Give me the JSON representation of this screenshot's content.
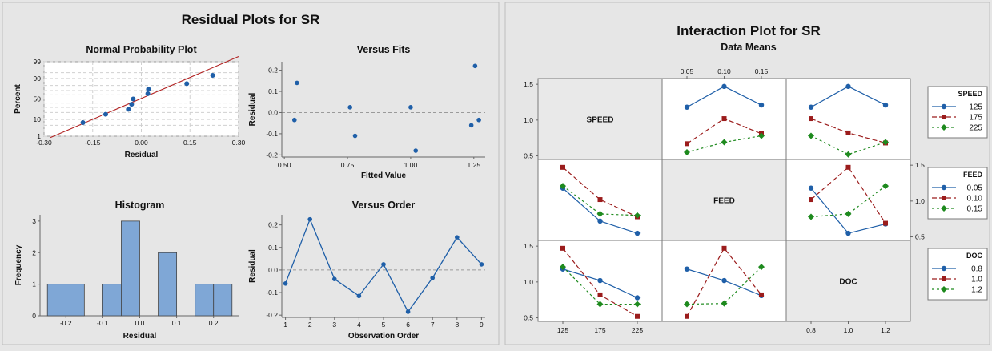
{
  "residual_title": "Residual Plots for SR",
  "interaction_title": "Interaction Plot for SR",
  "interaction_subtitle": "Data Means",
  "colors": {
    "blue": "#1f5fa8",
    "red": "#9b1c1c",
    "green": "#1e8a1e",
    "hist": "#7fa7d6",
    "diagBg": "#e9e9e9"
  },
  "chart_data": [
    {
      "type": "scatter",
      "title": "Normal Probability Plot",
      "xlabel": "Residual",
      "ylabel": "Percent",
      "xticks": [
        "-0.30",
        "-0.15",
        "0.00",
        "0.15",
        "0.30"
      ],
      "yticks": [
        "1",
        "10",
        "50",
        "90",
        "99"
      ],
      "grid": true,
      "points": [
        {
          "x": -0.18,
          "y": 7
        },
        {
          "x": -0.11,
          "y": 17
        },
        {
          "x": -0.04,
          "y": 26
        },
        {
          "x": -0.03,
          "y": 37
        },
        {
          "x": -0.025,
          "y": 50
        },
        {
          "x": 0.02,
          "y": 63
        },
        {
          "x": 0.022,
          "y": 73
        },
        {
          "x": 0.14,
          "y": 83
        },
        {
          "x": 0.22,
          "y": 93
        }
      ],
      "fit_line": [
        {
          "x": -0.28,
          "y": 0.8
        },
        {
          "x": 0.3,
          "y": 99.6
        }
      ]
    },
    {
      "type": "scatter",
      "title": "Versus Fits",
      "xlabel": "Fitted Value",
      "ylabel": "Residual",
      "xticks": [
        "0.50",
        "0.75",
        "1.00",
        "1.25"
      ],
      "yticks": [
        "-0.2",
        "-0.1",
        "0.0",
        "0.1",
        "0.2"
      ],
      "points": [
        {
          "x": 0.54,
          "y": -0.035
        },
        {
          "x": 0.55,
          "y": 0.14
        },
        {
          "x": 0.76,
          "y": 0.025
        },
        {
          "x": 0.78,
          "y": -0.11
        },
        {
          "x": 1.0,
          "y": 0.025
        },
        {
          "x": 1.02,
          "y": -0.18
        },
        {
          "x": 1.24,
          "y": -0.06
        },
        {
          "x": 1.255,
          "y": 0.22
        },
        {
          "x": 1.27,
          "y": -0.035
        }
      ]
    },
    {
      "type": "bar",
      "title": "Histogram",
      "xlabel": "Residual",
      "ylabel": "Frequency",
      "xticks": [
        "-0.2",
        "-0.1",
        "0.0",
        "0.1",
        "0.2"
      ],
      "yticks": [
        "0",
        "1",
        "2",
        "3"
      ],
      "bins": [
        {
          "x0": -0.25,
          "x1": -0.15,
          "count": 1
        },
        {
          "x0": -0.1,
          "x1": -0.05,
          "count": 1
        },
        {
          "x0": -0.05,
          "x1": 0.0,
          "count": 3
        },
        {
          "x0": 0.05,
          "x1": 0.1,
          "count": 2
        },
        {
          "x0": 0.15,
          "x1": 0.2,
          "count": 1
        },
        {
          "x0": 0.2,
          "x1": 0.25,
          "count": 1
        }
      ]
    },
    {
      "type": "line",
      "title": "Versus Order",
      "xlabel": "Observation Order",
      "ylabel": "Residual",
      "xticks": [
        "1",
        "2",
        "3",
        "4",
        "5",
        "6",
        "7",
        "8",
        "9"
      ],
      "yticks": [
        "-0.2",
        "-0.1",
        "0.0",
        "0.1",
        "0.2"
      ],
      "x": [
        1,
        2,
        3,
        4,
        5,
        6,
        7,
        8,
        9
      ],
      "y": [
        -0.06,
        0.225,
        -0.04,
        -0.115,
        0.025,
        -0.185,
        -0.035,
        0.145,
        0.025
      ]
    },
    {
      "type": "line",
      "title": "Interaction Plot for SR",
      "subtitle": "Data Means",
      "factors": [
        {
          "name": "SPEED",
          "levels": [
            "125",
            "175",
            "225"
          ]
        },
        {
          "name": "FEED",
          "levels": [
            "0.05",
            "0.10",
            "0.15"
          ]
        },
        {
          "name": "DOC",
          "levels": [
            "0.8",
            "1.0",
            "1.2"
          ]
        }
      ],
      "yticks": [
        "0.5",
        "1.0",
        "1.5"
      ],
      "ylim": [
        0.45,
        1.58
      ],
      "cells": [
        {
          "row": 0,
          "col": 1,
          "series": [
            [
              1.18,
              1.47,
              1.21
            ],
            [
              0.67,
              1.02,
              0.81
            ],
            [
              0.55,
              0.69,
              0.78
            ]
          ]
        },
        {
          "row": 0,
          "col": 2,
          "series": [
            [
              1.18,
              1.47,
              1.21
            ],
            [
              1.02,
              0.82,
              0.68
            ],
            [
              0.78,
              0.52,
              0.69
            ]
          ]
        },
        {
          "row": 1,
          "col": 0,
          "series": [
            [
              1.18,
              0.72,
              0.55
            ],
            [
              1.47,
              1.02,
              0.78
            ],
            [
              1.21,
              0.82,
              0.8
            ]
          ]
        },
        {
          "row": 1,
          "col": 2,
          "series": [
            [
              1.18,
              0.55,
              0.68
            ],
            [
              1.02,
              1.47,
              0.69
            ],
            [
              0.78,
              0.82,
              1.21
            ]
          ]
        },
        {
          "row": 2,
          "col": 0,
          "series": [
            [
              1.18,
              1.02,
              0.78
            ],
            [
              1.47,
              0.82,
              0.52
            ],
            [
              1.21,
              0.69,
              0.69
            ]
          ]
        },
        {
          "row": 2,
          "col": 1,
          "series": [
            [
              1.18,
              1.02,
              0.81
            ],
            [
              0.52,
              1.47,
              0.82
            ],
            [
              0.69,
              0.7,
              1.21
            ]
          ]
        }
      ],
      "legends": [
        {
          "title": "SPEED",
          "entries": [
            "125",
            "175",
            "225"
          ]
        },
        {
          "title": "FEED",
          "entries": [
            "0.05",
            "0.10",
            "0.15"
          ]
        },
        {
          "title": "DOC",
          "entries": [
            "0.8",
            "1.0",
            "1.2"
          ]
        }
      ]
    }
  ]
}
